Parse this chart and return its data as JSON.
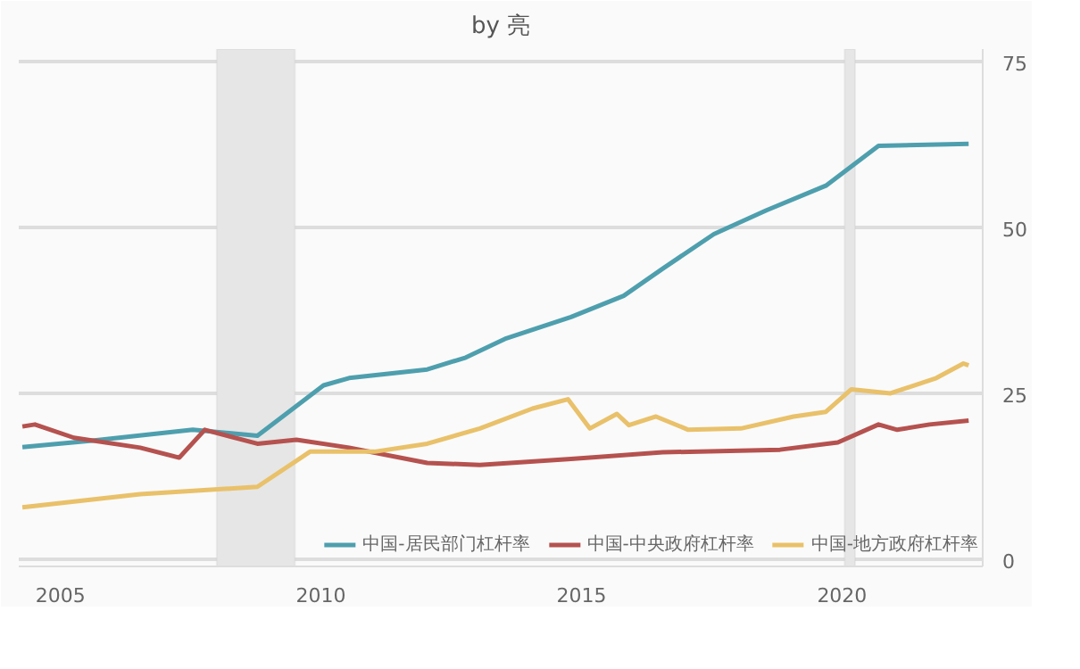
{
  "chart_data": {
    "type": "line",
    "subtitle": "by 亮",
    "xlim": [
      2004.2,
      2022.7
    ],
    "xticks": [
      2005,
      2010,
      2015,
      2020
    ],
    "ylim": [
      -1,
      77
    ],
    "yticks": [
      0,
      25,
      50,
      75
    ],
    "grid": "y",
    "legend": "bottom",
    "marker": "none",
    "line_style": "solid",
    "bands": [
      {
        "axis": "x",
        "from": 2008.0,
        "to": 2009.5,
        "color": "#e6e6e6"
      },
      {
        "axis": "x",
        "from": 2020.05,
        "to": 2020.25,
        "color": "#e6e6e6"
      }
    ],
    "series": [
      {
        "name": "中国-居民部门杠杆率",
        "color": "#4e9fae",
        "x": [
          2004.27,
          2005.65,
          2007.54,
          2008.78,
          2010.05,
          2010.54,
          2012.04,
          2012.78,
          2013.53,
          2014.8,
          2015.81,
          2016.56,
          2017.54,
          2018.55,
          2019.69,
          2020.7,
          2022.43
        ],
        "values": [
          17,
          18,
          19.6,
          18.7,
          26.3,
          27.4,
          28.7,
          30.5,
          33.3,
          36.6,
          39.8,
          43.9,
          49.1,
          52.7,
          56.4,
          62.4,
          62.7
        ]
      },
      {
        "name": "中国-中央政府杠杆率",
        "color": "#b5524f",
        "x": [
          2004.27,
          2004.51,
          2005.26,
          2006.53,
          2007.28,
          2007.77,
          2008.78,
          2009.53,
          2010.54,
          2012.04,
          2013.05,
          2014.8,
          2016.56,
          2018.81,
          2019.92,
          2020.7,
          2021.06,
          2021.68,
          2022.43
        ],
        "values": [
          20.1,
          20.4,
          18.4,
          16.9,
          15.4,
          19.6,
          17.5,
          18.1,
          16.9,
          14.6,
          14.3,
          15.2,
          16.2,
          16.6,
          17.7,
          20.4,
          19.6,
          20.4,
          21
        ]
      },
      {
        "name": "中国-地方政府杠杆率",
        "color": "#e9c16a",
        "x": [
          2004.27,
          2006.53,
          2008.78,
          2009.79,
          2011.03,
          2012.04,
          2013.05,
          2014.06,
          2014.74,
          2015.16,
          2015.68,
          2015.91,
          2016.43,
          2017.05,
          2018.06,
          2019.07,
          2019.69,
          2020.18,
          2020.93,
          2021.81,
          2022.33,
          2022.43
        ],
        "values": [
          7.9,
          9.9,
          11,
          16.3,
          16.3,
          17.5,
          19.8,
          22.8,
          24.2,
          19.8,
          22,
          20.3,
          21.6,
          19.6,
          19.8,
          21.6,
          22.3,
          25.7,
          25.1,
          27.4,
          29.6,
          29.3
        ]
      }
    ]
  }
}
